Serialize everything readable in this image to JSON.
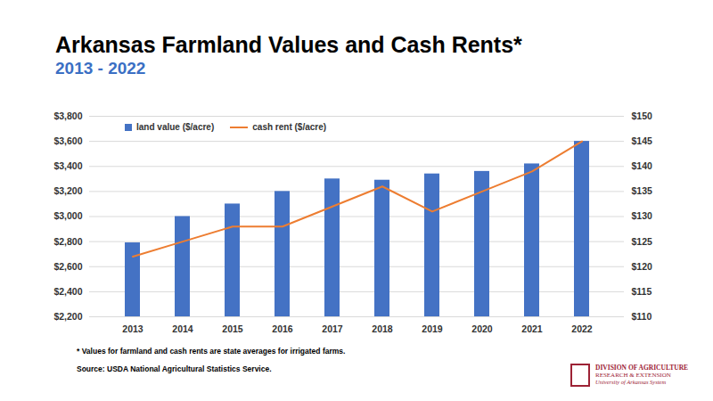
{
  "chart_data": {
    "type": "bar",
    "title": "Arkansas Farmland Values and Cash Rents*",
    "subtitle": "2013 - 2022",
    "footnote": "* Values for farmland and cash rents are state averages for irrigated farms.",
    "source": "Source: USDA National Agricultural Statistics Service.",
    "logo": [
      "DIVISION OF AGRICULTURE",
      "RESEARCH & EXTENSION",
      "University of Arkansas System"
    ],
    "categories": [
      "2013",
      "2014",
      "2015",
      "2016",
      "2017",
      "2018",
      "2019",
      "2020",
      "2021",
      "2022"
    ],
    "series": [
      {
        "name": "land value ($/acre)",
        "type": "bar",
        "color": "#4472c4",
        "values": [
          2790,
          3000,
          3100,
          3200,
          3300,
          3290,
          3340,
          3360,
          3420,
          3600
        ]
      },
      {
        "name": "cash rent ($/acre)",
        "type": "line",
        "color": "#ed7d31",
        "axis": "y2",
        "values": [
          122,
          125,
          128,
          128,
          132,
          136,
          131,
          135,
          139,
          145
        ]
      }
    ],
    "ylim": [
      2200,
      3800
    ],
    "yticks": [
      {
        "value": 2200,
        "label": "$2,200"
      },
      {
        "value": 2400,
        "label": "$2,400"
      },
      {
        "value": 2600,
        "label": "$2,600"
      },
      {
        "value": 2800,
        "label": "$2,800"
      },
      {
        "value": 3000,
        "label": "$3,000"
      },
      {
        "value": 3200,
        "label": "$3,200"
      },
      {
        "value": 3400,
        "label": "$3,400"
      },
      {
        "value": 3600,
        "label": "$3,600"
      },
      {
        "value": 3800,
        "label": "$3,800"
      }
    ],
    "y2lim": [
      110,
      150
    ],
    "y2ticks": [
      {
        "value": 110,
        "label": "$110"
      },
      {
        "value": 115,
        "label": "$115"
      },
      {
        "value": 120,
        "label": "$120"
      },
      {
        "value": 125,
        "label": "$125"
      },
      {
        "value": 130,
        "label": "$130"
      },
      {
        "value": 135,
        "label": "$135"
      },
      {
        "value": 140,
        "label": "$140"
      },
      {
        "value": 145,
        "label": "$145"
      },
      {
        "value": 150,
        "label": "$150"
      }
    ],
    "grid": true,
    "legend": "top-left"
  }
}
